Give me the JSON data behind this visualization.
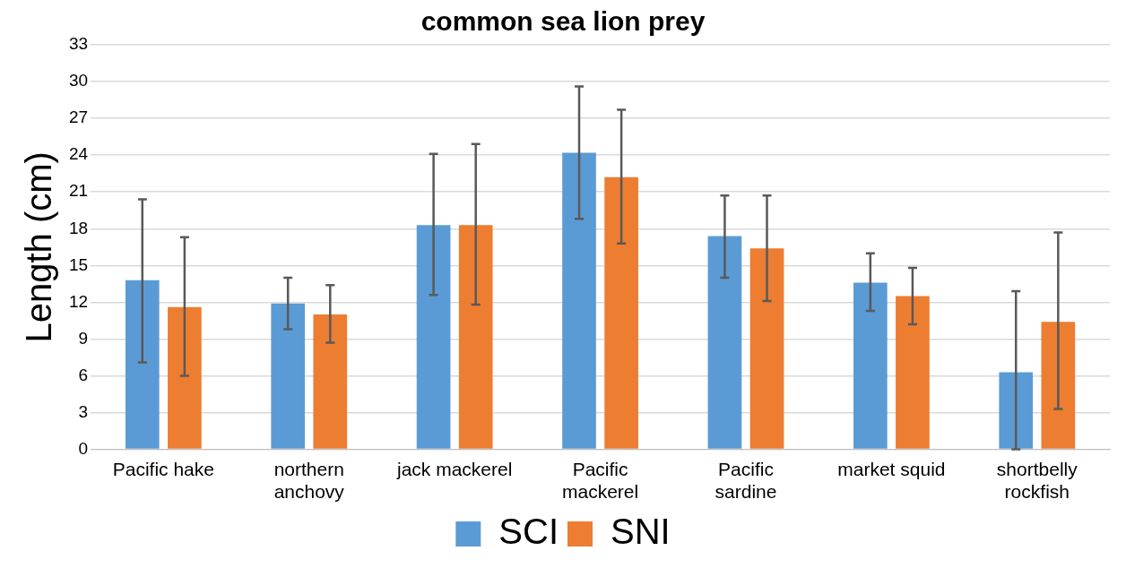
{
  "chart_data": {
    "type": "bar",
    "title": "common sea lion prey",
    "ylabel": "Length (cm)",
    "categories": [
      "Pacific hake",
      "northern anchovy",
      "jack mackerel",
      "Pacific mackerel",
      "Pacific sardine",
      "market squid",
      "shortbelly rockfish"
    ],
    "series": [
      {
        "name": "SCI",
        "color": "#5b9bd5",
        "values": [
          13.8,
          11.9,
          18.3,
          24.2,
          17.4,
          13.6,
          6.3
        ],
        "errors": [
          [
            7.1,
            20.4
          ],
          [
            9.8,
            14.0
          ],
          [
            12.6,
            24.1
          ],
          [
            18.8,
            29.6
          ],
          [
            14.0,
            20.7
          ],
          [
            11.3,
            16.0
          ],
          [
            0,
            12.9
          ]
        ]
      },
      {
        "name": "SNI",
        "color": "#ed7d31",
        "values": [
          11.6,
          11.0,
          18.3,
          22.2,
          16.4,
          12.5,
          10.4
        ],
        "errors": [
          [
            6.0,
            17.3
          ],
          [
            8.7,
            13.4
          ],
          [
            11.8,
            24.9
          ],
          [
            16.8,
            27.7
          ],
          [
            12.1,
            20.7
          ],
          [
            10.2,
            14.8
          ],
          [
            3.3,
            17.7
          ]
        ]
      }
    ],
    "ylim": [
      0,
      33
    ],
    "yticks": [
      0,
      3,
      6,
      9,
      12,
      15,
      18,
      21,
      24,
      27,
      30,
      33
    ],
    "grid": "y",
    "legend": "bottom"
  }
}
